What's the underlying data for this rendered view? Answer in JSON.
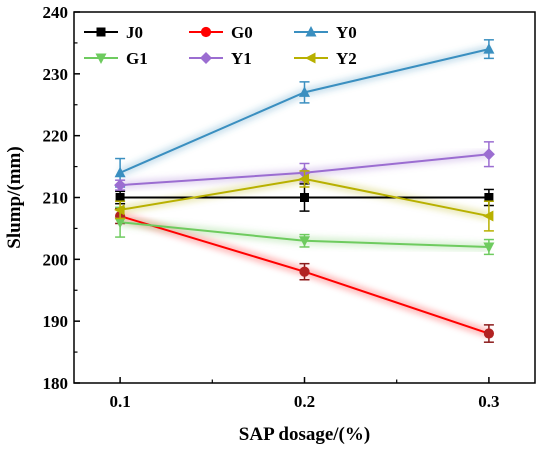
{
  "chart_data": {
    "type": "line",
    "title": "",
    "xlabel": "SAP dosage/(%)",
    "ylabel": "Slump/(mm)",
    "x": [
      0.1,
      0.2,
      0.3
    ],
    "xtick_labels": [
      "0.1",
      "0.2",
      "0.3"
    ],
    "xlim": [
      0.075,
      0.325
    ],
    "ylim": [
      180,
      240
    ],
    "yticks": [
      180,
      190,
      200,
      210,
      220,
      230,
      240
    ],
    "grid": false,
    "legend_position": "top-left",
    "series": [
      {
        "name": "J0",
        "color": "#000000",
        "marker": "square",
        "values": [
          210,
          210,
          210
        ],
        "errors": [
          1.0,
          2.2,
          1.3
        ],
        "error_color": "#000000"
      },
      {
        "name": "G0",
        "color": "#ff0000",
        "marker": "circle",
        "values": [
          207,
          198,
          188
        ],
        "errors": [
          1.2,
          1.3,
          1.4
        ],
        "error_color": "#8b1a1a"
      },
      {
        "name": "Y0",
        "color": "#3a8fc0",
        "marker": "triangle-up",
        "values": [
          214,
          227,
          234
        ],
        "errors": [
          2.3,
          1.7,
          1.5
        ],
        "error_color": "#3a8fc0"
      },
      {
        "name": "G1",
        "color": "#6ecb5f",
        "marker": "triangle-down",
        "values": [
          206,
          203,
          202
        ],
        "errors": [
          2.4,
          1.0,
          1.2
        ],
        "error_color": "#6ecb5f"
      },
      {
        "name": "Y1",
        "color": "#9b6dd1",
        "marker": "diamond",
        "values": [
          212,
          214,
          217
        ],
        "errors": [
          0.8,
          1.5,
          2.0
        ],
        "error_color": "#9b6dd1"
      },
      {
        "name": "Y2",
        "color": "#b8b000",
        "marker": "triangle-left",
        "values": [
          208,
          213,
          207
        ],
        "errors": [
          1.4,
          1.3,
          2.4
        ],
        "error_color": "#b8b000"
      }
    ]
  }
}
